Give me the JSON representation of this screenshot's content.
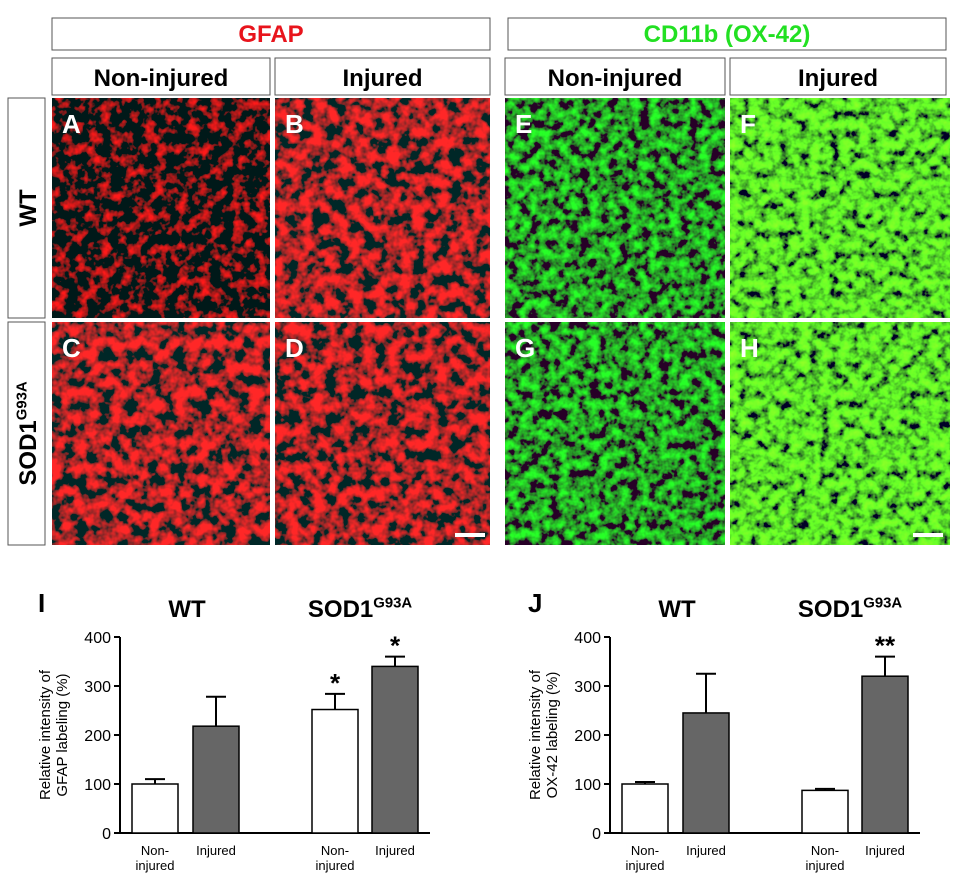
{
  "headers": [
    "GFAP",
    "CD11b (OX-42)"
  ],
  "columns": [
    "Non-injured",
    "Injured",
    "Non-injured",
    "Injured"
  ],
  "rows": [
    {
      "base": "WT"
    },
    {
      "base": "SOD1",
      "sup": "G93A"
    }
  ],
  "panels": [
    "A",
    "B",
    "C",
    "D",
    "E",
    "F",
    "G",
    "H"
  ],
  "chart_data": [
    {
      "type": "bar",
      "panel_label": "I",
      "groups": [
        {
          "base": "WT"
        },
        {
          "base": "SOD1",
          "sup": "G93A"
        }
      ],
      "y_label": [
        "Relative intensity of",
        "GFAP labeling (%)"
      ],
      "categories": [
        "Non-injured",
        "Injured",
        "Non-injured",
        "Injured"
      ],
      "values": [
        100,
        218,
        252,
        340
      ],
      "errors": [
        10,
        60,
        32,
        20
      ],
      "colors": [
        "#ffffff",
        "#666666",
        "#ffffff",
        "#666666"
      ],
      "annotations": [
        {
          "index": 2,
          "text": "*"
        },
        {
          "index": 3,
          "text": "*"
        }
      ],
      "ylim": [
        0,
        400
      ],
      "yticks": [
        0,
        100,
        200,
        300,
        400
      ]
    },
    {
      "type": "bar",
      "panel_label": "J",
      "groups": [
        {
          "base": "WT"
        },
        {
          "base": "SOD1",
          "sup": "G93A"
        }
      ],
      "y_label": [
        "Relative intensity of",
        "OX-42 labeling (%)"
      ],
      "categories": [
        "Non-injured",
        "Injured",
        "Non-injured",
        "Injured"
      ],
      "values": [
        100,
        245,
        87,
        320
      ],
      "errors": [
        4,
        80,
        3,
        40
      ],
      "colors": [
        "#ffffff",
        "#666666",
        "#ffffff",
        "#666666"
      ],
      "annotations": [
        {
          "index": 3,
          "text": "**"
        }
      ],
      "ylim": [
        0,
        400
      ],
      "yticks": [
        0,
        100,
        200,
        300,
        400
      ]
    }
  ]
}
